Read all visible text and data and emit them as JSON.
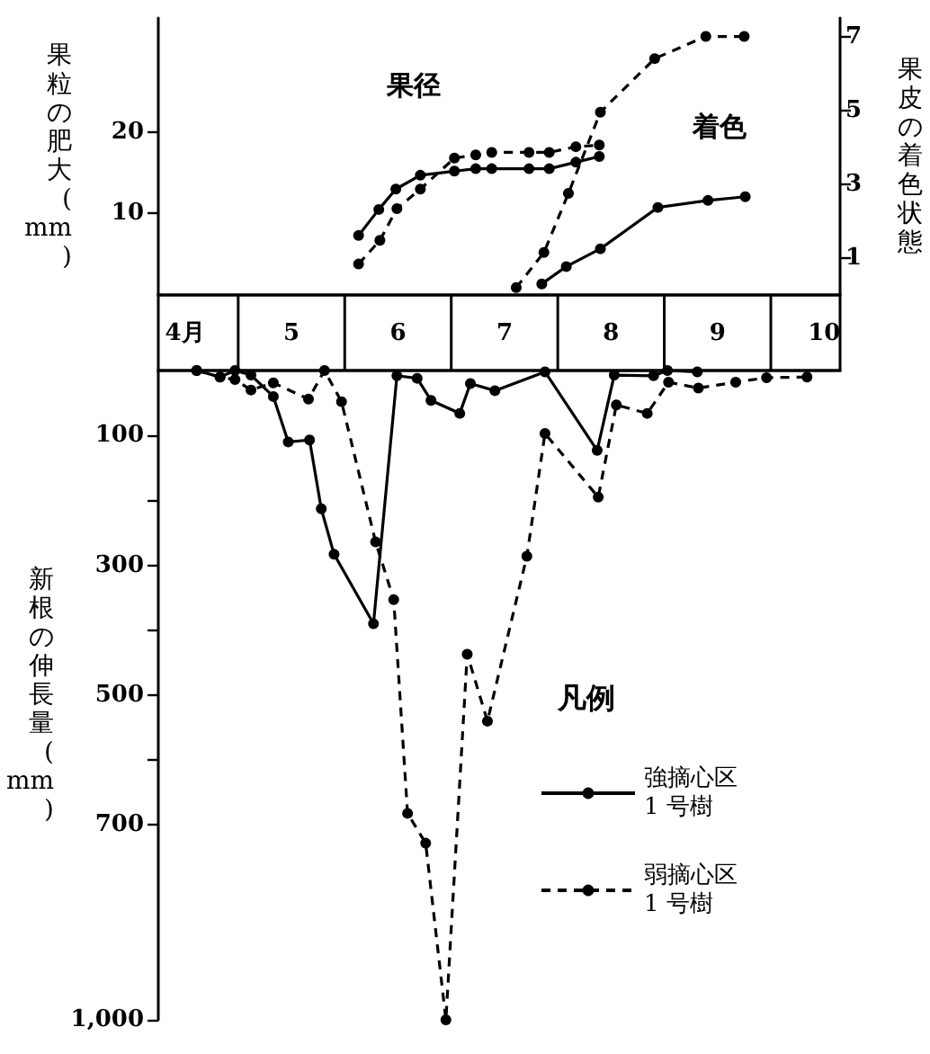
{
  "chart_data": [
    {
      "type": "line",
      "annotations": [
        "果径",
        "着色"
      ],
      "xlim": [
        3.75,
        10.15
      ],
      "tick_labels": "y",
      "ylabel": "果粒の肥大(mm)",
      "ylim": [
        0,
        34
      ],
      "yticks": [
        10,
        20
      ],
      "y2label": "果皮の着色状態",
      "y2lim": [
        0,
        7.5
      ],
      "y2ticks": [
        1,
        3,
        5,
        7
      ],
      "marker": "circle",
      "series": [
        {
          "color": "#000000",
          "line_style": "solid",
          "axis": "y",
          "x": [
            5.63,
            5.82,
            5.98,
            6.21,
            6.53,
            6.73,
            6.88,
            7.23,
            7.42,
            7.67,
            7.89
          ],
          "values": [
            7.3,
            10.5,
            13.0,
            14.7,
            15.2,
            15.5,
            15.5,
            15.5,
            15.5,
            16.3,
            17.0
          ]
        },
        {
          "color": "#000000",
          "line_style": "dashed",
          "axis": "y",
          "x": [
            5.63,
            5.83,
            5.99,
            6.21,
            6.53,
            6.73,
            6.88,
            7.23,
            7.42,
            7.67,
            7.89
          ],
          "values": [
            3.8,
            6.7,
            10.6,
            13.0,
            16.8,
            17.2,
            17.5,
            17.5,
            17.5,
            18.2,
            18.4
          ]
        },
        {
          "color": "#000000",
          "line_style": "solid",
          "axis": "y2",
          "x": [
            7.35,
            7.58,
            7.9,
            8.44,
            8.91,
            9.26
          ],
          "values": [
            0.3,
            0.77,
            1.25,
            2.37,
            2.56,
            2.66
          ]
        },
        {
          "color": "#000000",
          "line_style": "dashed",
          "axis": "y2",
          "x": [
            7.11,
            7.37,
            7.6,
            7.9,
            8.41,
            8.89,
            9.25
          ],
          "values": [
            0.2,
            1.15,
            2.75,
            4.95,
            6.4,
            7.0,
            7.0
          ]
        }
      ]
    },
    {
      "type": "line",
      "xlim": [
        3.75,
        10.15
      ],
      "xticks": [
        {
          "value": 4,
          "label": "4月"
        },
        5,
        6,
        7,
        8,
        9,
        10
      ],
      "ylabel": "新根の伸長量(mm)",
      "ylim": [
        1000,
        0
      ],
      "yticks": [
        100,
        {
          "value": 200,
          "label": null
        },
        300,
        {
          "value": 400,
          "label": null
        },
        500,
        {
          "value": 600,
          "label": null
        },
        700,
        {
          "value": 1000,
          "label": "1,000"
        }
      ],
      "legend": "right",
      "legend_title": "凡例",
      "marker": "circle",
      "series": [
        {
          "name": "強摘心区\n1 号樹",
          "color": "#000000",
          "line_style": "solid",
          "x": [
            4.11,
            4.33,
            4.47,
            4.62,
            4.83,
            4.97,
            5.17,
            5.28,
            5.4,
            5.77,
            5.99,
            6.18,
            6.31,
            6.58,
            6.68,
            6.91,
            7.38,
            7.87,
            8.03,
            8.4,
            8.53,
            8.81
          ],
          "values": [
            0,
            10,
            0,
            7,
            40,
            110,
            107,
            213,
            283,
            390,
            8,
            12,
            46,
            66,
            20,
            31,
            2,
            123,
            7,
            8,
            0,
            2
          ]
        },
        {
          "name": "弱摘心区\n1 号樹",
          "color": "#000000",
          "line_style": "dashed",
          "x": [
            4.11,
            4.33,
            4.47,
            4.62,
            4.83,
            5.16,
            5.31,
            5.47,
            5.79,
            5.96,
            6.09,
            6.26,
            6.45,
            6.65,
            6.84,
            7.21,
            7.38,
            7.88,
            8.05,
            8.34,
            8.54,
            8.82,
            9.17,
            9.46,
            9.84
          ],
          "values": [
            0,
            10,
            14,
            30,
            19,
            44,
            0,
            48,
            264,
            353,
            682,
            728,
            1000,
            437,
            540,
            286,
            97,
            195,
            53,
            66,
            18,
            27,
            18,
            11,
            10
          ]
        }
      ]
    }
  ]
}
